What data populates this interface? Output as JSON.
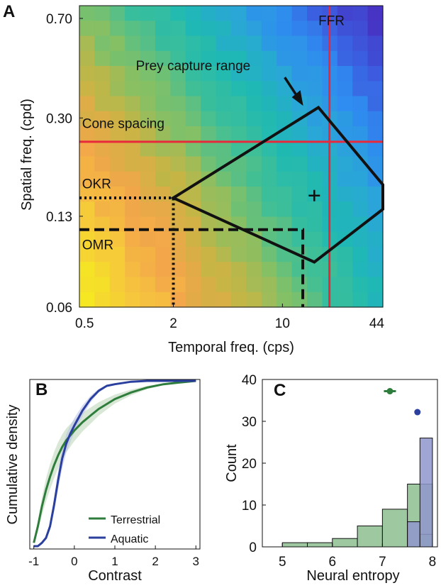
{
  "figure": {
    "panels": [
      "A",
      "B",
      "C"
    ]
  },
  "chart_data": [
    {
      "panel": "A",
      "type": "heatmap",
      "xlabel": "Temporal freq. (cps)",
      "ylabel": "Spatial freq. (cpd)",
      "x_ticks": [
        {
          "v": 0.5,
          "label": "0.5"
        },
        {
          "v": 2,
          "label": "2"
        },
        {
          "v": 10,
          "label": "10"
        },
        {
          "v": 44,
          "label": "44"
        }
      ],
      "y_ticks": [
        {
          "v": 0.06,
          "label": "0.06"
        },
        {
          "v": 0.13,
          "label": "0.13"
        },
        {
          "v": 0.3,
          "label": "0.30"
        },
        {
          "v": 0.7,
          "label": "0.70"
        }
      ],
      "xlim": [
        0.5,
        44
      ],
      "ylim": [
        0.06,
        0.78
      ],
      "scale": "log",
      "colormap": [
        "#f5ec1e",
        "#f6c83c",
        "#f3a64a",
        "#c6b545",
        "#83c066",
        "#3fbf97",
        "#1fb9b3",
        "#2aa6d8",
        "#2f8bf0",
        "#3b5ee0",
        "#4733c4"
      ],
      "grid_cells": 20,
      "annotations": [
        {
          "label": "FFR",
          "x": 17,
          "y": 0.66
        },
        {
          "label": "Prey capture range",
          "x": 1.15,
          "y": 0.45
        },
        {
          "label": "Cone spacing",
          "x": 0.52,
          "y": 0.275
        },
        {
          "label": "OKR",
          "x": 0.52,
          "y": 0.165
        },
        {
          "label": "OMR",
          "x": 0.52,
          "y": 0.098
        }
      ],
      "lines": {
        "ffr_x": 20,
        "cone_spacing_y": 0.245,
        "okr": {
          "x": 2,
          "y": 0.152
        },
        "omr": {
          "x": 13.5,
          "y": 0.116
        },
        "prey_polygon": [
          [
            2,
            0.152
          ],
          [
            17,
            0.328
          ],
          [
            44,
            0.17
          ],
          [
            44,
            0.138
          ],
          [
            16,
            0.088
          ]
        ],
        "plus": {
          "x": 16,
          "y": 0.155
        }
      },
      "colors": {
        "ffr": "#e8293c",
        "cone": "#e8293c",
        "black": "#111111"
      }
    },
    {
      "panel": "B",
      "type": "line",
      "xlabel": "Contrast",
      "ylabel": "Cumulative density",
      "xlim": [
        -1.1,
        3.1
      ],
      "ylim": [
        0,
        1
      ],
      "x_ticks": [
        -1,
        0,
        1,
        2,
        3
      ],
      "legend": [
        {
          "name": "Terrestrial",
          "color": "#2f7d3c"
        },
        {
          "name": "Aquatic",
          "color": "#2a3f9e"
        }
      ],
      "series": [
        {
          "name": "Terrestrial",
          "color": "#2f7d3c",
          "band": "#b9d6b4",
          "x": [
            -1.0,
            -0.9,
            -0.8,
            -0.7,
            -0.6,
            -0.5,
            -0.4,
            -0.3,
            -0.2,
            -0.1,
            0.0,
            0.2,
            0.4,
            0.6,
            0.8,
            1.0,
            1.4,
            1.8,
            2.2,
            2.6,
            3.0
          ],
          "y": [
            0.02,
            0.12,
            0.24,
            0.34,
            0.42,
            0.49,
            0.55,
            0.6,
            0.64,
            0.67,
            0.7,
            0.75,
            0.79,
            0.83,
            0.86,
            0.89,
            0.93,
            0.96,
            0.98,
            0.99,
            1.0
          ],
          "band_width": 0.08
        },
        {
          "name": "Aquatic",
          "color": "#2a3f9e",
          "band": "#b6bde8",
          "x": [
            -1.0,
            -0.9,
            -0.8,
            -0.7,
            -0.6,
            -0.5,
            -0.4,
            -0.3,
            -0.2,
            -0.1,
            0.0,
            0.2,
            0.4,
            0.6,
            0.8,
            1.0,
            1.4,
            1.8,
            2.2,
            2.6,
            3.0
          ],
          "y": [
            0.0,
            0.0,
            0.02,
            0.05,
            0.12,
            0.25,
            0.4,
            0.53,
            0.62,
            0.68,
            0.73,
            0.82,
            0.89,
            0.94,
            0.97,
            0.98,
            0.995,
            1.0,
            1.0,
            1.0,
            1.0
          ],
          "band_width": 0.06
        }
      ]
    },
    {
      "panel": "C",
      "type": "bar",
      "xlabel": "Neural entropy",
      "ylabel": "Count",
      "xlim": [
        4.6,
        8.1
      ],
      "ylim": [
        0,
        40
      ],
      "x_ticks": [
        5,
        6,
        7,
        8
      ],
      "y_ticks": [
        0,
        10,
        20,
        30,
        40
      ],
      "bin_edges": [
        5.0,
        5.5,
        6.0,
        6.5,
        7.0,
        7.5,
        8.0
      ],
      "series": [
        {
          "name": "Terrestrial",
          "color": "#2f7d3c",
          "fill": "#8dbf8f",
          "bins": [
            [
              5.0,
              5.5,
              1
            ],
            [
              5.5,
              6.0,
              1
            ],
            [
              6.0,
              6.5,
              2
            ],
            [
              6.5,
              7.0,
              5
            ],
            [
              7.0,
              7.5,
              9
            ],
            [
              7.5,
              8.0,
              15
            ],
            [
              7.75,
              8.0,
              3
            ]
          ]
        },
        {
          "name": "Aquatic",
          "color": "#2a3f9e",
          "fill": "#8f97cb",
          "bins": [
            [
              7.5,
              7.75,
              6
            ],
            [
              7.75,
              8.0,
              26
            ]
          ]
        }
      ],
      "means": [
        {
          "name": "Terrestrial",
          "x": 7.15,
          "y": 37.2,
          "xerr": 0.12,
          "color": "#2f7d3c"
        },
        {
          "name": "Aquatic",
          "x": 7.7,
          "y": 32.2,
          "xerr": 0.05,
          "color": "#2a3f9e"
        }
      ]
    }
  ]
}
